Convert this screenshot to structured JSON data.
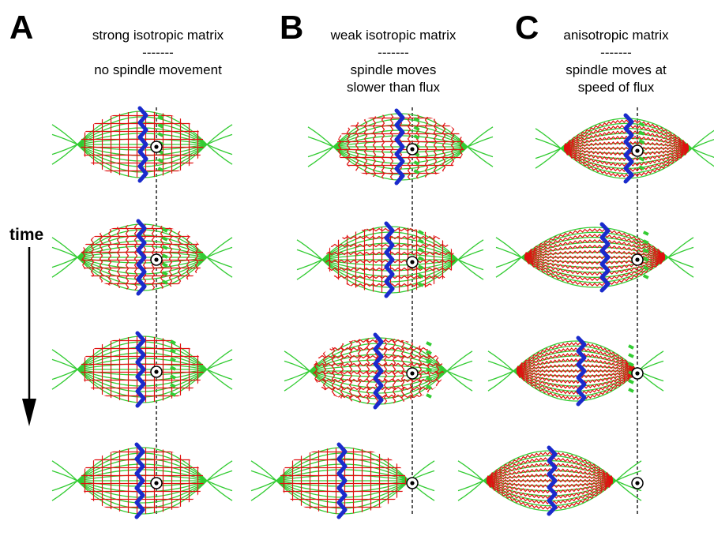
{
  "panels": [
    {
      "letter": "A",
      "title": "strong isotropic matrix",
      "separator": "-------",
      "caption_lines": [
        "no spindle movement"
      ]
    },
    {
      "letter": "B",
      "title": "weak isotropic matrix",
      "separator": "-------",
      "caption_lines": [
        "spindle moves",
        "slower than flux"
      ]
    },
    {
      "letter": "C",
      "title": "anisotropic matrix",
      "separator": "-------",
      "caption_lines": [
        "spindle moves at",
        "speed of flux"
      ]
    }
  ],
  "time_label": "time",
  "colors": {
    "microtubule": "#33cc33",
    "matrix": "#e01010",
    "chromosome": "#1a2bcc",
    "reference_line": "#000000",
    "marker": "#000000"
  },
  "icons": {
    "marker": "bullseye-marker-icon",
    "time_arrow": "down-arrow-icon"
  }
}
